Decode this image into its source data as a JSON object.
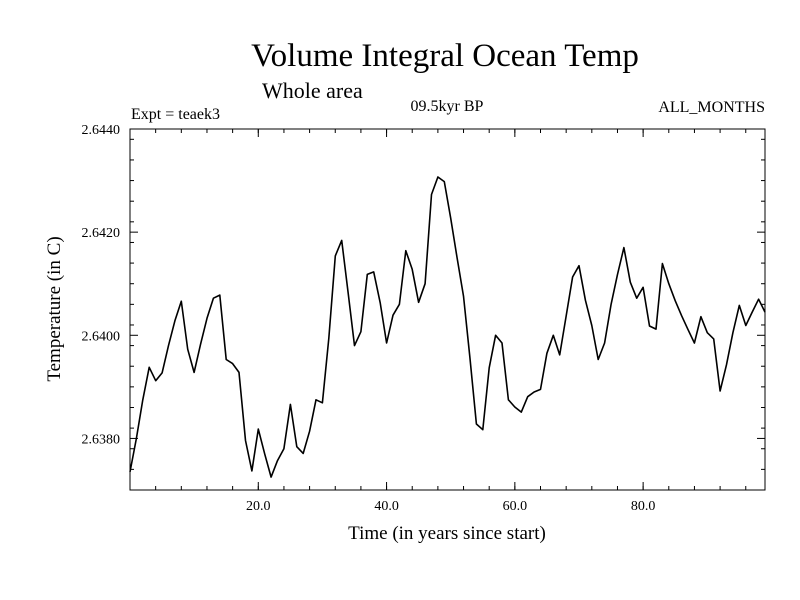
{
  "chart_data": {
    "type": "line",
    "title": "Volume Integral Ocean Temp",
    "subtitle": "Whole area",
    "expt_label": "Expt = teaek3",
    "period_label": "09.5kyr BP",
    "months_label": "ALL_MONTHS",
    "xlabel": "Time (in years since start)",
    "ylabel": "Temperature (in C)",
    "xlim": [
      0,
      99
    ],
    "ylim": [
      2.637,
      2.644
    ],
    "xticks": [
      20,
      40,
      60,
      80
    ],
    "xtick_labels": [
      "20.0",
      "40.0",
      "60.0",
      "80.0"
    ],
    "yticks": [
      2.638,
      2.64,
      2.642,
      2.644
    ],
    "ytick_labels": [
      "2.6380",
      "2.6400",
      "2.6420",
      "2.6440"
    ],
    "x_minor_step": 4,
    "y_minor_step": 0.0004,
    "grid": false,
    "series": [
      {
        "name": "Volume Integral Ocean Temp",
        "color": "#000000",
        "x": [
          0,
          1,
          2,
          3,
          4,
          5,
          6,
          7,
          8,
          9,
          10,
          11,
          12,
          13,
          14,
          15,
          16,
          17,
          18,
          19,
          20,
          21,
          22,
          23,
          24,
          25,
          26,
          27,
          28,
          29,
          30,
          31,
          32,
          33,
          34,
          35,
          36,
          37,
          38,
          39,
          40,
          41,
          42,
          43,
          44,
          45,
          46,
          47,
          48,
          49,
          50,
          51,
          52,
          53,
          54,
          55,
          56,
          57,
          58,
          59,
          60,
          61,
          62,
          63,
          64,
          65,
          66,
          67,
          68,
          69,
          70,
          71,
          72,
          73,
          74,
          75,
          76,
          77,
          78,
          79,
          80,
          81,
          82,
          83,
          84,
          85,
          86,
          87,
          88,
          89,
          90,
          91,
          92,
          93,
          94,
          95,
          96,
          97,
          98,
          99
        ],
        "values": [
          2.63735,
          2.638,
          2.63875,
          2.63938,
          2.63912,
          2.63927,
          2.6398,
          2.64028,
          2.64066,
          2.63973,
          2.63928,
          2.63983,
          2.64033,
          2.64072,
          2.64078,
          2.63953,
          2.63945,
          2.63928,
          2.63796,
          2.63737,
          2.63818,
          2.6377,
          2.63725,
          2.63757,
          2.6378,
          2.63866,
          2.63784,
          2.63771,
          2.63814,
          2.63875,
          2.63869,
          2.63994,
          2.64154,
          2.64184,
          2.64083,
          2.6398,
          2.64007,
          2.64118,
          2.64123,
          2.64063,
          2.63985,
          2.64039,
          2.6406,
          2.64164,
          2.64128,
          2.64064,
          2.641,
          2.64273,
          2.64307,
          2.64298,
          2.64227,
          2.6415,
          2.64076,
          2.63957,
          2.63828,
          2.63817,
          2.63937,
          2.64,
          2.63985,
          2.63875,
          2.63861,
          2.63851,
          2.63881,
          2.6389,
          2.63895,
          2.63965,
          2.64,
          2.63962,
          2.64038,
          2.64113,
          2.64135,
          2.64068,
          2.64019,
          2.63953,
          2.63985,
          2.6406,
          2.64118,
          2.6417,
          2.64103,
          2.64072,
          2.64093,
          2.64018,
          2.64012,
          2.64139,
          2.641,
          2.64067,
          2.64038,
          2.64011,
          2.63985,
          2.64036,
          2.64005,
          2.63993,
          2.63892,
          2.63943,
          2.64005,
          2.64058,
          2.64019,
          2.64045,
          2.6407,
          2.64045
        ]
      }
    ]
  }
}
